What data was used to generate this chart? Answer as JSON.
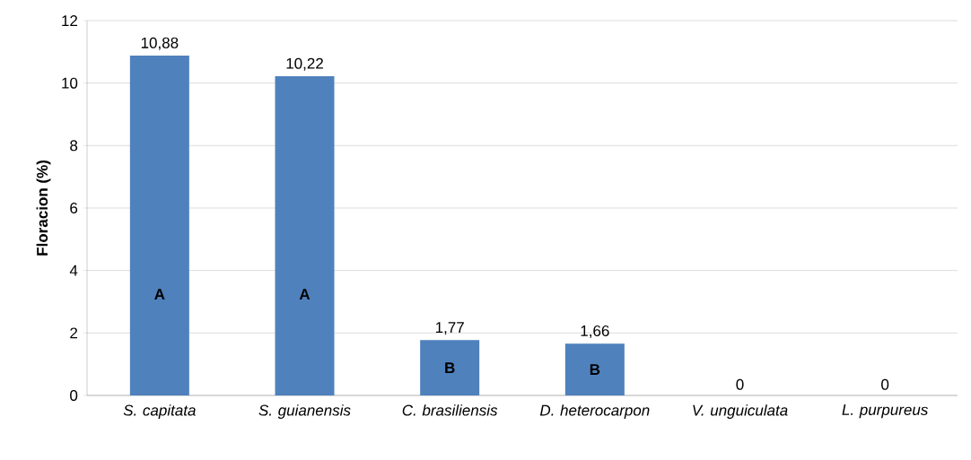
{
  "chart_data": {
    "type": "bar",
    "ylabel": "Floracion (%)",
    "categories": [
      "S. capitata",
      "S. guianensis",
      "C. brasiliensis",
      "D. heterocarpon",
      "V. unguiculata",
      "L. purpureus"
    ],
    "values": [
      10.88,
      10.22,
      1.77,
      1.66,
      0,
      0
    ],
    "value_labels": [
      "10,88",
      "10,22",
      "1,77",
      "1,66",
      "0",
      "0"
    ],
    "color": "#4f81bd",
    "ylim": [
      0,
      12
    ],
    "yticks": [
      0,
      2,
      4,
      6,
      8,
      10,
      12
    ],
    "grid": "y",
    "annotations": [
      "A",
      "A",
      "B",
      "B"
    ]
  }
}
